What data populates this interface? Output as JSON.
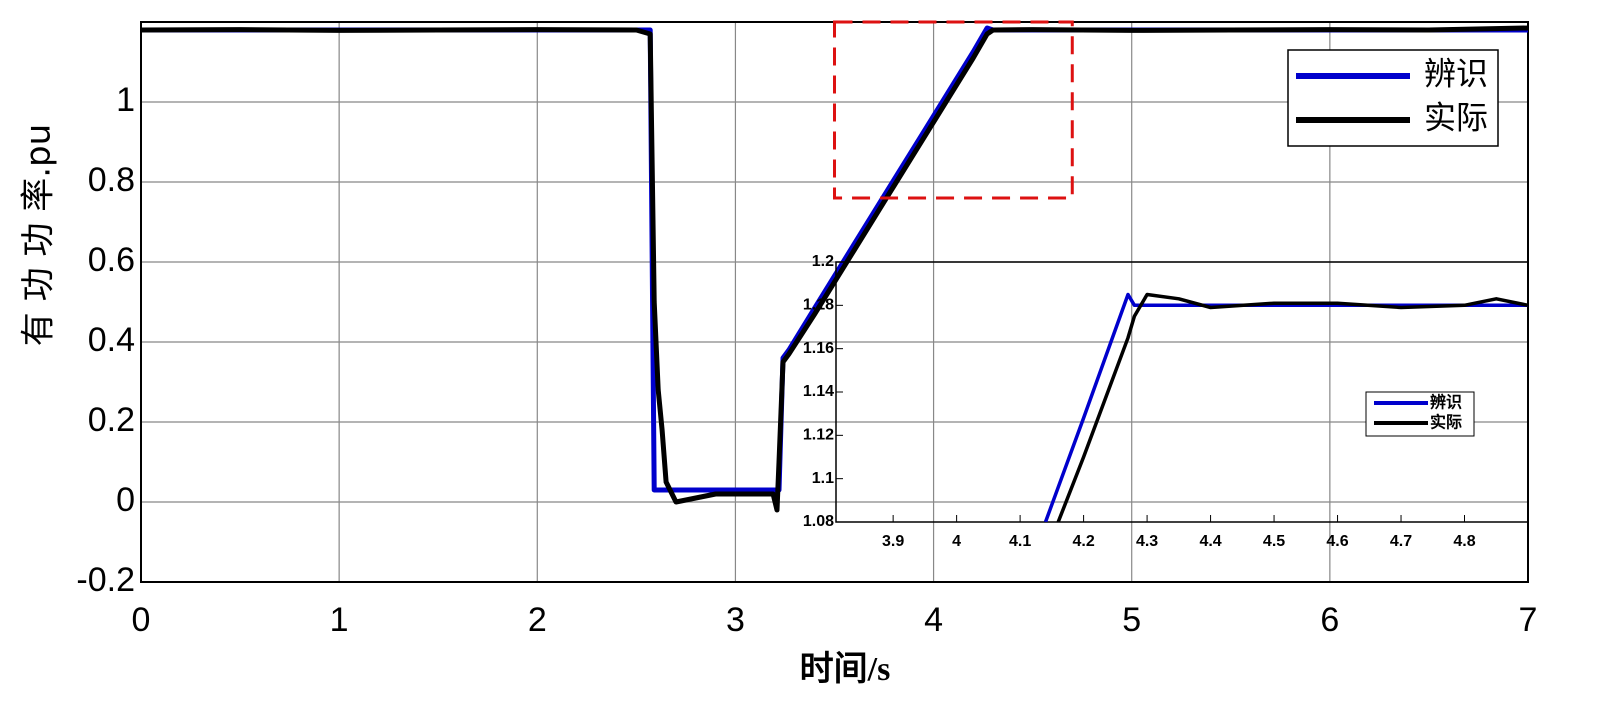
{
  "chart_data": [
    {
      "type": "line",
      "x_label": "时间/s",
      "y_label": "有 功 功 率.pu",
      "x": [
        0,
        0.5,
        1,
        1.5,
        2,
        2.5,
        2.57,
        2.59,
        2.61,
        2.63,
        2.65,
        2.7,
        2.8,
        2.9,
        3.0,
        3.1,
        3.19,
        3.21,
        3.22,
        3.24,
        3.27,
        3.4,
        3.6,
        3.8,
        4.0,
        4.2,
        4.27,
        4.3,
        4.5,
        5,
        5.5,
        6,
        6.5,
        7
      ],
      "series": [
        {
          "name": "辨识",
          "color": "#0000cc",
          "values": [
            1.18,
            1.18,
            1.18,
            1.18,
            1.18,
            1.18,
            1.18,
            0.03,
            0.03,
            0.03,
            0.03,
            0.03,
            0.03,
            0.03,
            0.03,
            0.03,
            0.03,
            0.03,
            0.03,
            0.36,
            0.38,
            0.485,
            0.645,
            0.805,
            0.965,
            1.125,
            1.185,
            1.18,
            1.18,
            1.18,
            1.18,
            1.18,
            1.18,
            1.18
          ]
        },
        {
          "name": "实际",
          "color": "#000000",
          "values": [
            1.18,
            1.181,
            1.179,
            1.18,
            1.181,
            1.18,
            1.17,
            0.5,
            0.28,
            0.18,
            0.05,
            0.0,
            0.01,
            0.02,
            0.02,
            0.02,
            0.02,
            -0.02,
            0.1,
            0.35,
            0.37,
            0.47,
            0.63,
            0.79,
            0.95,
            1.11,
            1.17,
            1.18,
            1.181,
            1.179,
            1.18,
            1.181,
            1.18,
            1.185
          ]
        }
      ],
      "xlim": [
        0,
        7
      ],
      "ylim": [
        -0.2,
        1.2
      ],
      "xticks": [
        0,
        1,
        2,
        3,
        4,
        5,
        6,
        7
      ],
      "yticks": [
        -0.2,
        0,
        0.2,
        0.4,
        0.6,
        0.8,
        1
      ],
      "grid": true,
      "legend": "upper right",
      "zoom_box": {
        "xlim": [
          3.5,
          4.7
        ],
        "ylim": [
          0.76,
          1.2
        ],
        "color": "#dd1111"
      }
    },
    {
      "type": "line",
      "x": [
        3.81,
        4.14,
        4.16,
        4.2,
        4.27,
        4.28,
        4.3,
        4.35,
        4.4,
        4.5,
        4.6,
        4.7,
        4.8,
        4.85,
        4.9
      ],
      "series": [
        {
          "name": "辨识",
          "color": "#0000cc",
          "values": [
            null,
            1.08,
            1.096,
            1.128,
            1.185,
            1.18,
            1.18,
            1.18,
            1.18,
            1.18,
            1.18,
            1.18,
            1.18,
            1.18,
            1.18
          ]
        },
        {
          "name": "实际",
          "color": "#000000",
          "values": [
            null,
            null,
            1.08,
            1.11,
            1.165,
            1.175,
            1.185,
            1.183,
            1.179,
            1.181,
            1.181,
            1.179,
            1.18,
            1.183,
            1.18
          ]
        }
      ],
      "xlim": [
        3.81,
        4.9
      ],
      "ylim": [
        1.08,
        1.2
      ],
      "xticks": [
        3.9,
        4,
        4.1,
        4.2,
        4.3,
        4.4,
        4.5,
        4.6,
        4.7,
        4.8
      ],
      "yticks": [
        1.08,
        1.1,
        1.12,
        1.14,
        1.16,
        1.18,
        1.2
      ],
      "grid": false,
      "legend": "center right"
    }
  ]
}
